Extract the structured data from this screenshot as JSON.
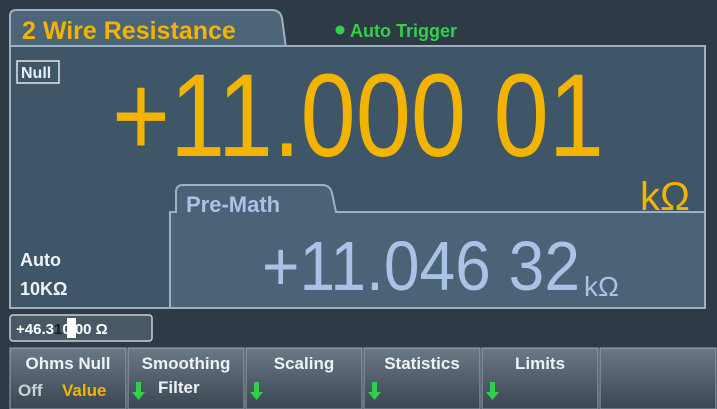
{
  "header": {
    "title": "2 Wire Resistance",
    "trigger": "Auto Trigger"
  },
  "null_label": "Null",
  "reading": {
    "value": "+11.000 01",
    "unit": "kΩ"
  },
  "premath": {
    "label": "Pre-Math",
    "value": "+11.046 32",
    "unit": "kΩ"
  },
  "range": {
    "mode": "Auto",
    "value": "10KΩ"
  },
  "entry": {
    "before": "+46.3",
    "cursor": "1",
    "after": "0 00 Ω"
  },
  "softkeys": [
    {
      "label": "Ohms Null",
      "options": [
        "Off",
        "Value"
      ]
    },
    {
      "label": "Smoothing",
      "sub": "Filter"
    },
    {
      "label": "Scaling"
    },
    {
      "label": "Statistics"
    },
    {
      "label": "Limits"
    }
  ]
}
